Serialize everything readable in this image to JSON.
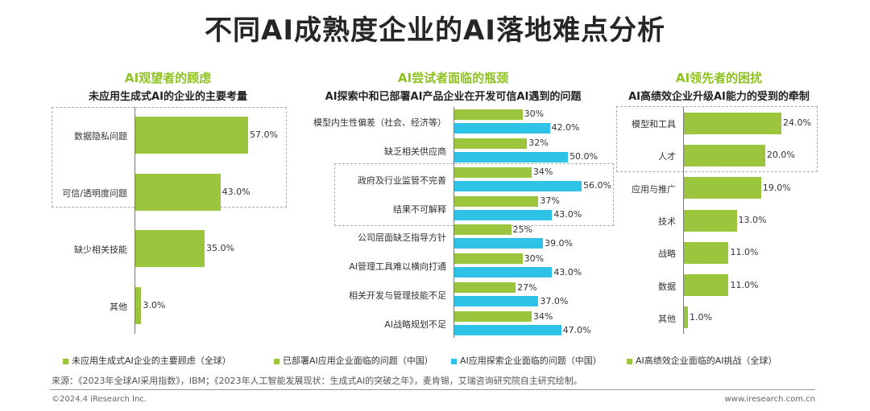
{
  "title": "不同AI成熟度企业的AI落地难点分析",
  "colors": {
    "green": "#9bc53d",
    "blue": "#2ec3e6",
    "accent": "#8dc21f"
  },
  "chart_data": [
    {
      "type": "bar",
      "orientation": "horizontal",
      "panel_title": "AI观望者的顾虑",
      "subtitle": "未应用生成式AI的企业的主要考量",
      "categories": [
        "数据隐私问题",
        "可信/透明度问题",
        "缺少相关技能",
        "其他"
      ],
      "series": [
        {
          "name": "未应用生成式AI企业的主要顾虑（全球）",
          "color": "#9bc53d",
          "values": [
            57.0,
            43.0,
            35.0,
            3.0
          ],
          "labels": [
            "57.0%",
            "43.0%",
            "35.0%",
            "3.0%"
          ]
        }
      ],
      "xlim": [
        0,
        57
      ]
    },
    {
      "type": "bar",
      "orientation": "horizontal",
      "panel_title": "AI尝试者面临的瓶颈",
      "subtitle": "AI探索中和已部署AI产品企业在开发可信AI遇到的问题",
      "categories": [
        "模型内生性偏差（社会、经济等）",
        "缺乏相关供应商",
        "政府及行业监管不完善",
        "结果不可解释",
        "公司层面缺乏指导方针",
        "AI管理工具难以横向打通",
        "相关开发与管理技能不足",
        "AI战略规划不足"
      ],
      "series": [
        {
          "name": "已部署AI应用企业面临的问题（中国）",
          "color": "#9bc53d",
          "values": [
            30,
            32,
            34,
            37,
            25,
            30,
            27,
            34
          ],
          "labels": [
            "30%",
            "32%",
            "34%",
            "37%",
            "25%",
            "30%",
            "27%",
            "34%"
          ]
        },
        {
          "name": "AI应用探索企业面临的问题（中国）",
          "color": "#2ec3e6",
          "values": [
            42.0,
            50.0,
            56.0,
            43.0,
            39.0,
            43.0,
            37.0,
            47.0
          ],
          "labels": [
            "42.0%",
            "50.0%",
            "56.0%",
            "43.0%",
            "39.0%",
            "43.0%",
            "37.0%",
            "47.0%"
          ]
        }
      ],
      "xlim": [
        0,
        56
      ]
    },
    {
      "type": "bar",
      "orientation": "horizontal",
      "panel_title": "AI领先者的困扰",
      "subtitle": "AI高绩效企业升级AI能力的受到的牵制",
      "categories": [
        "模型和工具",
        "人才",
        "应用与推广",
        "技术",
        "战略",
        "数据",
        "其他"
      ],
      "series": [
        {
          "name": "AI高绩效企业面临的AI挑战（全球）",
          "color": "#9bc53d",
          "values": [
            24.0,
            20.0,
            19.0,
            13.0,
            11.0,
            11.0,
            1.0
          ],
          "labels": [
            "24.0%",
            "20.0%",
            "19.0%",
            "13.0%",
            "11.0%",
            "11.0%",
            "1.0%"
          ]
        }
      ],
      "xlim": [
        0,
        24
      ]
    }
  ],
  "legend": [
    "未应用生成式AI企业的主要顾虑（全球）",
    "已部署AI应用企业面临的问题（中国）",
    "AI应用探索企业面临的问题（中国）",
    "AI高绩效企业面临的AI挑战（全球）"
  ],
  "source": "来源：《2023年全球AI采用指数》，IBM；《2023年人工智能发展现状：生成式AI的突破之年》，麦肯锡，艾瑞咨询研究院自主研究绘制。",
  "copyright": "©2024.4 iResearch Inc.",
  "website": "www.iresearch.com.cn"
}
